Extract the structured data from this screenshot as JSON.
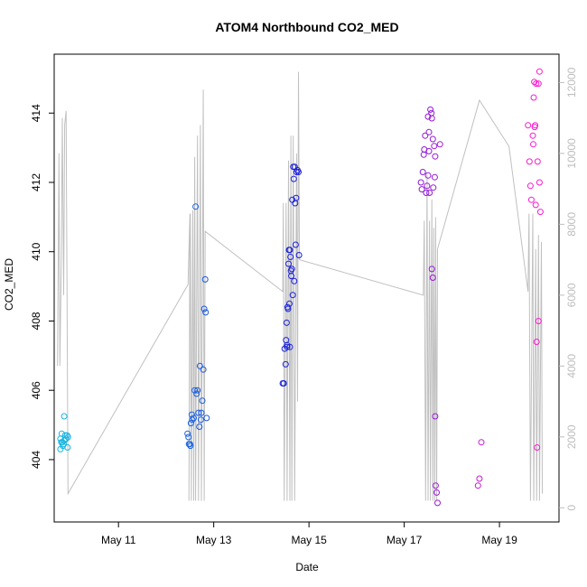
{
  "chart_data": {
    "type": "scatter",
    "title": "ATOM4 Northbound CO2_MED",
    "xlabel": "Date",
    "ylabel": "CO2_MED",
    "y2label": "",
    "x_unit": "days (May 2019 calendar day, fractional)",
    "xlim": [
      9.65,
      20.25
    ],
    "ylim": [
      402.2,
      415.7
    ],
    "y2lim": [
      -400,
      12800
    ],
    "x_ticks": [
      {
        "value": 11,
        "label": "May 11"
      },
      {
        "value": 13,
        "label": "May 13"
      },
      {
        "value": 15,
        "label": "May 15"
      },
      {
        "value": 17,
        "label": "May 17"
      },
      {
        "value": 19,
        "label": "May 19"
      }
    ],
    "y_ticks": [
      404,
      406,
      408,
      410,
      412,
      414
    ],
    "y2_ticks": [
      0,
      2000,
      4000,
      6000,
      8000,
      10000,
      12000
    ],
    "grid": false,
    "legend": "none",
    "colors": {
      "series_start": "#17b6e0",
      "series_mid": "#1a1adb",
      "series_end": "#ff19d0",
      "line": "#c0c0c0",
      "axis": "#000000",
      "right_axis": "#bdbdbd"
    },
    "series": [
      {
        "axis": "left",
        "marker": "open-circle",
        "points": [
          [
            9.78,
            404.3
          ],
          [
            9.8,
            404.5
          ],
          [
            9.81,
            404.75
          ],
          [
            9.82,
            404.5
          ],
          [
            9.83,
            404.4
          ],
          [
            9.85,
            404.45
          ],
          [
            9.86,
            404.55
          ],
          [
            9.88,
            404.7
          ],
          [
            9.78,
            404.6
          ],
          [
            9.9,
            404.6
          ],
          [
            9.92,
            404.7
          ],
          [
            9.94,
            404.65
          ],
          [
            9.86,
            405.25
          ],
          [
            9.93,
            404.35
          ],
          [
            12.45,
            404.75
          ],
          [
            12.47,
            404.65
          ],
          [
            12.48,
            404.45
          ],
          [
            12.5,
            404.45
          ],
          [
            12.51,
            404.4
          ],
          [
            12.52,
            405.05
          ],
          [
            12.54,
            405.3
          ],
          [
            12.55,
            405.15
          ],
          [
            12.58,
            405.2
          ],
          [
            12.6,
            406.0
          ],
          [
            12.62,
            411.3
          ],
          [
            12.64,
            405.9
          ],
          [
            12.66,
            406.0
          ],
          [
            12.68,
            405.35
          ],
          [
            12.7,
            404.95
          ],
          [
            12.71,
            406.7
          ],
          [
            12.73,
            405.15
          ],
          [
            12.76,
            405.7
          ],
          [
            12.78,
            406.6
          ],
          [
            12.8,
            408.35
          ],
          [
            12.82,
            409.2
          ],
          [
            12.83,
            408.25
          ],
          [
            12.85,
            405.2
          ],
          [
            12.74,
            405.35
          ],
          [
            14.45,
            406.2
          ],
          [
            14.47,
            406.2
          ],
          [
            14.49,
            407.2
          ],
          [
            14.51,
            406.75
          ],
          [
            14.52,
            407.45
          ],
          [
            14.53,
            407.95
          ],
          [
            14.54,
            407.3
          ],
          [
            14.55,
            408.4
          ],
          [
            14.56,
            408.35
          ],
          [
            14.57,
            409.65
          ],
          [
            14.58,
            410.05
          ],
          [
            14.59,
            408.5
          ],
          [
            14.6,
            410.05
          ],
          [
            14.61,
            409.85
          ],
          [
            14.62,
            409.45
          ],
          [
            14.63,
            409.3
          ],
          [
            14.64,
            409.5
          ],
          [
            14.65,
            411.5
          ],
          [
            14.66,
            408.75
          ],
          [
            14.67,
            412.45
          ],
          [
            14.68,
            412.1
          ],
          [
            14.69,
            409.15
          ],
          [
            14.7,
            412.45
          ],
          [
            14.71,
            411.4
          ],
          [
            14.72,
            410.2
          ],
          [
            14.73,
            411.55
          ],
          [
            14.74,
            412.3
          ],
          [
            14.76,
            412.35
          ],
          [
            14.78,
            412.3
          ],
          [
            14.79,
            409.9
          ],
          [
            14.54,
            407.25
          ],
          [
            14.6,
            407.25
          ],
          [
            17.35,
            412.0
          ],
          [
            17.37,
            411.8
          ],
          [
            17.39,
            412.3
          ],
          [
            17.41,
            412.8
          ],
          [
            17.42,
            412.95
          ],
          [
            17.44,
            413.35
          ],
          [
            17.46,
            411.7
          ],
          [
            17.48,
            411.9
          ],
          [
            17.5,
            412.2
          ],
          [
            17.52,
            413.45
          ],
          [
            17.53,
            411.7
          ],
          [
            17.55,
            414.1
          ],
          [
            17.57,
            414.0
          ],
          [
            17.58,
            413.85
          ],
          [
            17.6,
            413.25
          ],
          [
            17.61,
            411.85
          ],
          [
            17.63,
            413.05
          ],
          [
            17.64,
            412.15
          ],
          [
            17.58,
            409.5
          ],
          [
            17.6,
            409.25
          ],
          [
            17.65,
            405.25
          ],
          [
            17.66,
            403.25
          ],
          [
            17.68,
            403.05
          ],
          [
            17.7,
            402.75
          ],
          [
            17.52,
            412.9
          ],
          [
            17.65,
            412.75
          ],
          [
            17.75,
            413.1
          ],
          [
            17.5,
            413.9
          ],
          [
            18.55,
            403.25
          ],
          [
            18.58,
            403.45
          ],
          [
            18.62,
            404.5
          ],
          [
            19.6,
            413.65
          ],
          [
            19.63,
            412.6
          ],
          [
            19.65,
            411.9
          ],
          [
            19.67,
            411.5
          ],
          [
            19.7,
            413.35
          ],
          [
            19.72,
            414.45
          ],
          [
            19.73,
            414.9
          ],
          [
            19.74,
            413.6
          ],
          [
            19.75,
            413.65
          ],
          [
            19.76,
            411.35
          ],
          [
            19.77,
            414.85
          ],
          [
            19.78,
            407.4
          ],
          [
            19.79,
            404.35
          ],
          [
            19.8,
            412.6
          ],
          [
            19.82,
            414.85
          ],
          [
            19.84,
            415.2
          ],
          [
            19.82,
            408.0
          ],
          [
            19.86,
            411.15
          ],
          [
            19.84,
            412.0
          ],
          [
            19.71,
            413.1
          ]
        ]
      },
      {
        "axis": "right",
        "type": "line",
        "points": [
          [
            9.72,
            4000
          ],
          [
            9.75,
            10000
          ],
          [
            9.77,
            4000
          ],
          [
            9.8,
            7000
          ],
          [
            9.82,
            11000
          ],
          [
            9.85,
            6000
          ],
          [
            9.87,
            10800
          ],
          [
            9.9,
            11200
          ],
          [
            9.92,
            6200
          ],
          [
            9.94,
            400
          ],
          [
            12.46,
            6300
          ],
          [
            12.5,
            8300
          ],
          [
            12.48,
            200
          ],
          [
            12.51,
            8300
          ],
          [
            12.53,
            200
          ],
          [
            12.56,
            8400
          ],
          [
            12.58,
            200
          ],
          [
            12.6,
            9900
          ],
          [
            12.62,
            200
          ],
          [
            12.66,
            10500
          ],
          [
            12.68,
            200
          ],
          [
            12.72,
            10800
          ],
          [
            12.74,
            200
          ],
          [
            12.78,
            11800
          ],
          [
            12.8,
            200
          ],
          [
            12.82,
            7800
          ],
          [
            14.45,
            6100
          ],
          [
            14.46,
            8600
          ],
          [
            14.48,
            200
          ],
          [
            14.52,
            8600
          ],
          [
            14.54,
            200
          ],
          [
            14.57,
            9800
          ],
          [
            14.6,
            200
          ],
          [
            14.62,
            10500
          ],
          [
            14.64,
            200
          ],
          [
            14.67,
            10500
          ],
          [
            14.7,
            200
          ],
          [
            14.74,
            10000
          ],
          [
            14.76,
            3000
          ],
          [
            14.78,
            12300
          ],
          [
            14.8,
            7000
          ],
          [
            17.4,
            6000
          ],
          [
            17.42,
            8100
          ],
          [
            17.45,
            200
          ],
          [
            17.48,
            9400
          ],
          [
            17.5,
            200
          ],
          [
            17.53,
            8100
          ],
          [
            17.55,
            200
          ],
          [
            17.58,
            8700
          ],
          [
            17.6,
            200
          ],
          [
            17.62,
            7900
          ],
          [
            17.64,
            200
          ],
          [
            17.66,
            8200
          ],
          [
            17.68,
            200
          ],
          [
            17.7,
            7300
          ],
          [
            18.58,
            11500
          ],
          [
            19.2,
            10200
          ],
          [
            19.6,
            6100
          ],
          [
            19.62,
            8300
          ],
          [
            19.65,
            200
          ],
          [
            19.7,
            8300
          ],
          [
            19.72,
            200
          ],
          [
            19.76,
            7300
          ],
          [
            19.78,
            200
          ],
          [
            19.82,
            7700
          ],
          [
            19.84,
            200
          ],
          [
            19.88,
            7500
          ],
          [
            19.9,
            400
          ]
        ]
      }
    ]
  }
}
